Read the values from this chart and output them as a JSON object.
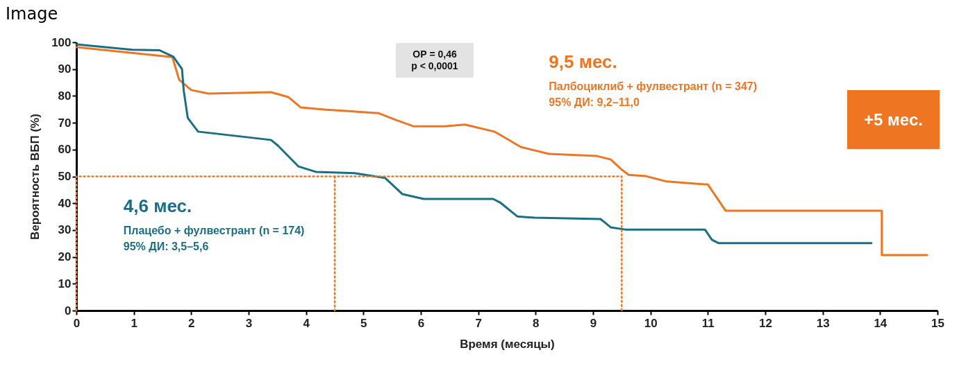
{
  "chart_data": {
    "type": "line",
    "title": "Image",
    "xlabel": "Время (месяцы)",
    "ylabel": "Вероятность ВБП (%)",
    "xlim": [
      0,
      15
    ],
    "ylim": [
      0,
      100
    ],
    "xticks": [
      0,
      1,
      2,
      3,
      4,
      5,
      6,
      7,
      8,
      9,
      10,
      11,
      12,
      13,
      14,
      15
    ],
    "yticks": [
      0,
      10,
      20,
      30,
      40,
      50,
      60,
      70,
      80,
      90,
      100
    ],
    "annotations": [
      "ОР = 0,46",
      "p < 0,0001",
      "9,5 мес.",
      "95% ДИ: 9,2–11,0",
      "4,6 мес.",
      "95% ДИ: 3,5–5,6",
      "+5 мес."
    ],
    "series": [
      {
        "name": "Палбоциклиб + фулвестрант (n = 347)",
        "color": "#ee7623",
        "x": [
          0,
          1.63,
          1.67,
          1.79,
          2,
          2.3,
          3.39,
          3.69,
          3.91,
          4.35,
          5.26,
          5.56,
          5.87,
          6.41,
          6.77,
          7.28,
          7.35,
          7.74,
          8.23,
          9.07,
          9.31,
          9.5,
          9.62,
          9.92,
          10.28,
          10.95,
          11.0,
          11.31,
          14.03,
          14.03,
          14.82
        ],
        "values": [
          98.2,
          94.6,
          94.6,
          86,
          82.2,
          80.9,
          81.4,
          79.6,
          75.7,
          74.9,
          73.6,
          71.1,
          68.7,
          68.7,
          69.3,
          66.7,
          65.9,
          61,
          58.4,
          57.6,
          56.3,
          52.5,
          50.6,
          50.1,
          48.1,
          47,
          47,
          37.2,
          37.2,
          20.7,
          20.7
        ]
      },
      {
        "name": "Плацебо + фулвестрант (n = 174)",
        "color": "#1a6e85",
        "x": [
          0,
          0.97,
          1.45,
          1.69,
          1.84,
          1.87,
          1.94,
          2.12,
          3.39,
          3.51,
          3.87,
          4.17,
          4.84,
          5.38,
          5.68,
          6.05,
          7.26,
          7.38,
          7.68,
          7.98,
          9.13,
          9.22,
          9.31,
          9.56,
          10.95,
          11.07,
          11.19,
          13.85
        ],
        "values": [
          99.2,
          97.2,
          97,
          94.6,
          90,
          82,
          71.8,
          66.7,
          63.6,
          61.5,
          53.7,
          51.7,
          51.2,
          49.4,
          43.4,
          41.6,
          41.6,
          40.3,
          35.1,
          34.6,
          34.1,
          32.6,
          31,
          30.2,
          30.2,
          26.4,
          25.1,
          25.1
        ]
      },
      {
        "color": "#ee7623",
        "line_style": "dotted",
        "x": [
          0,
          0,
          9.5,
          9.5
        ],
        "values": [
          0,
          50,
          50,
          0
        ]
      },
      {
        "color": "#ee7623",
        "line_style": "dotted",
        "x": [
          4.5,
          4.5
        ],
        "values": [
          50,
          0
        ]
      }
    ]
  }
}
